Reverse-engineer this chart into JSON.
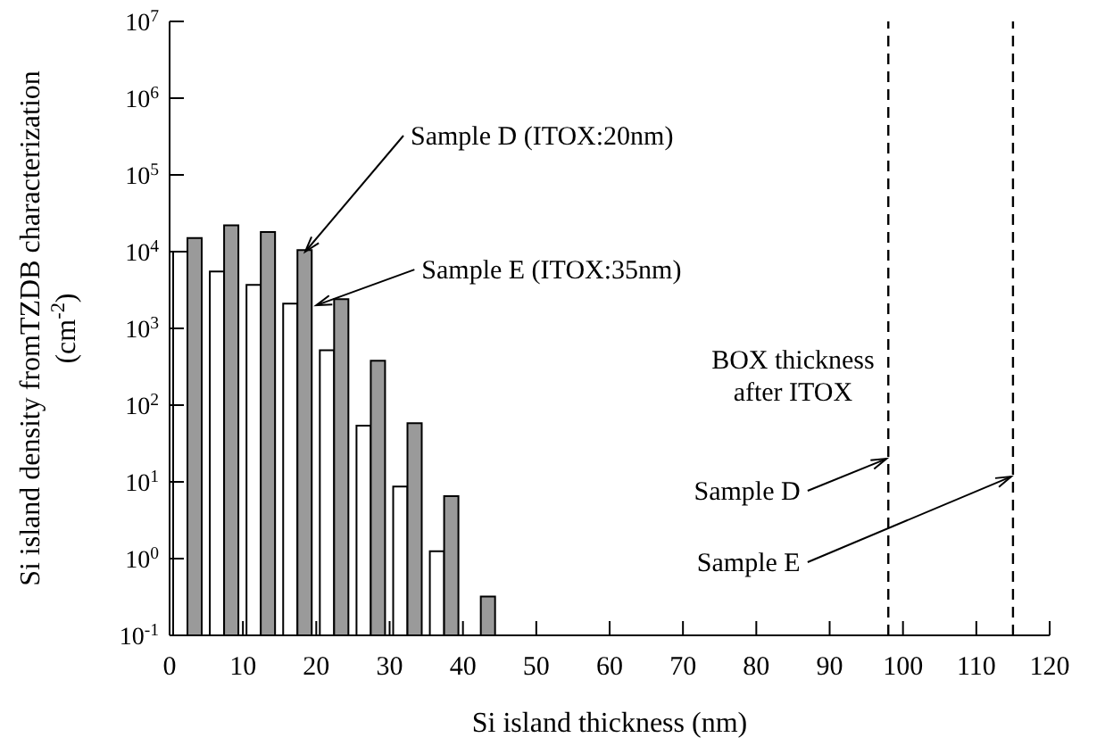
{
  "chart_data": {
    "type": "bar",
    "xlabel": "Si island thickness (nm)",
    "ylabel": "Si island density fromTZDB characterization (cm$^{-2}$)",
    "x": [
      2.5,
      7.5,
      12.5,
      17.5,
      22.5,
      27.5,
      32.5,
      37.5,
      42.5
    ],
    "series": [
      {
        "color": "#ffffff",
        "values": [
          10000,
          5500,
          3700,
          2100,
          520,
          54,
          8.7,
          1.25,
          null
        ]
      },
      {
        "color": "#9a9a9a",
        "values": [
          15000,
          22000,
          18000,
          10500,
          2400,
          380,
          58,
          6.5,
          0.32
        ]
      }
    ],
    "log": "y",
    "xlim": [
      0,
      120
    ],
    "xticks": [
      0,
      10,
      20,
      30,
      40,
      50,
      60,
      70,
      80,
      90,
      100,
      110,
      120
    ],
    "ylim": [
      0.1,
      10000000
    ],
    "yticks": [
      {
        "value": 0.1,
        "label": "10$^{-1}$"
      },
      {
        "value": 1,
        "label": "10$^{0}$"
      },
      {
        "value": 10,
        "label": "10$^{1}$"
      },
      {
        "value": 100,
        "label": "10$^{2}$"
      },
      {
        "value": 1000,
        "label": "10$^{3}$"
      },
      {
        "value": 10000,
        "label": "10$^{4}$"
      },
      {
        "value": 100000,
        "label": "10$^{5}$"
      },
      {
        "value": 1000000,
        "label": "10$^{6}$"
      },
      {
        "value": 10000000,
        "label": "10$^{7}$"
      }
    ],
    "ref_lines": [
      {
        "axis": "x",
        "value": 98,
        "label": "Sample D",
        "line_style": "dashed",
        "color": "#000000"
      },
      {
        "axis": "x",
        "value": 115,
        "label": "Sample E",
        "line_style": "dashed",
        "color": "#000000"
      }
    ],
    "annotations": [
      {
        "text": "Sample D (ITOX:20nm)",
        "x": 18.5,
        "y": 10000
      },
      {
        "text": "Sample E (ITOX:35nm)",
        "x": 20,
        "y": 2000
      },
      "BOX thickness after ITOX"
    ],
    "tick_labels": "xy"
  }
}
